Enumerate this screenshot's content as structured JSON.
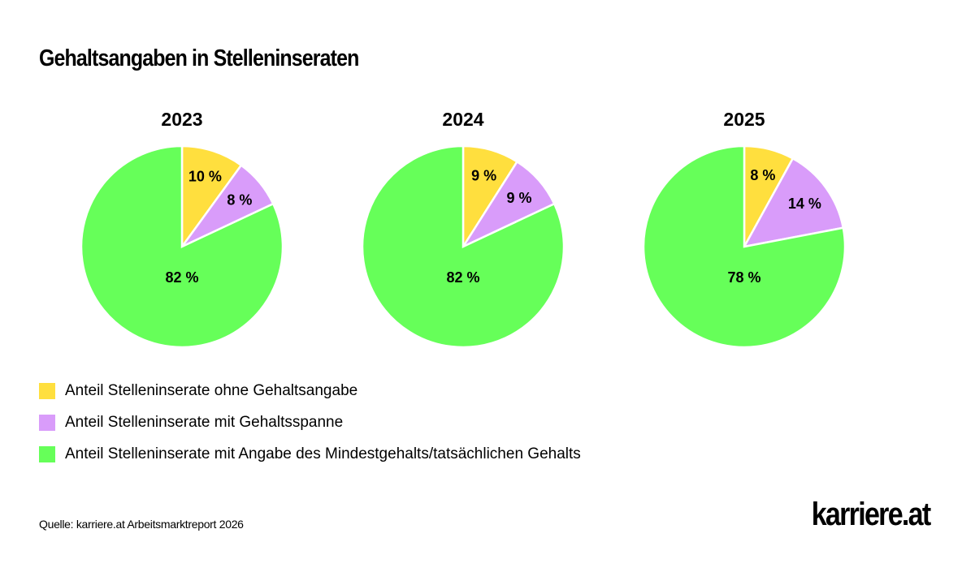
{
  "chart_data": {
    "title": "Gehaltsangaben in Stelleninseraten",
    "type": "pie",
    "legend_position": "bottom-left",
    "series": [
      {
        "name": "Anteil Stelleninserate ohne Gehaltsangabe",
        "color": "#FFDF3E"
      },
      {
        "name": "Anteil Stelleninserate mit Gehaltsspanne",
        "color": "#D99CFA"
      },
      {
        "name": "Anteil Stelleninserate mit Angabe des Mindestgehalts/tatsächlichen Gehalts",
        "color": "#66FF59"
      }
    ],
    "charts": [
      {
        "year": "2023",
        "values": [
          10,
          8,
          82
        ],
        "labels": [
          "10 %",
          "8 %",
          "82 %"
        ]
      },
      {
        "year": "2024",
        "values": [
          9,
          9,
          82
        ],
        "labels": [
          "9 %",
          "9 %",
          "82 %"
        ]
      },
      {
        "year": "2025",
        "values": [
          8,
          14,
          78
        ],
        "labels": [
          "8 %",
          "14 %",
          "78 %"
        ]
      }
    ]
  },
  "footer": {
    "source": "Quelle: karriere.at Arbeitsmarktreport 2026",
    "logo": "karriere.at"
  }
}
